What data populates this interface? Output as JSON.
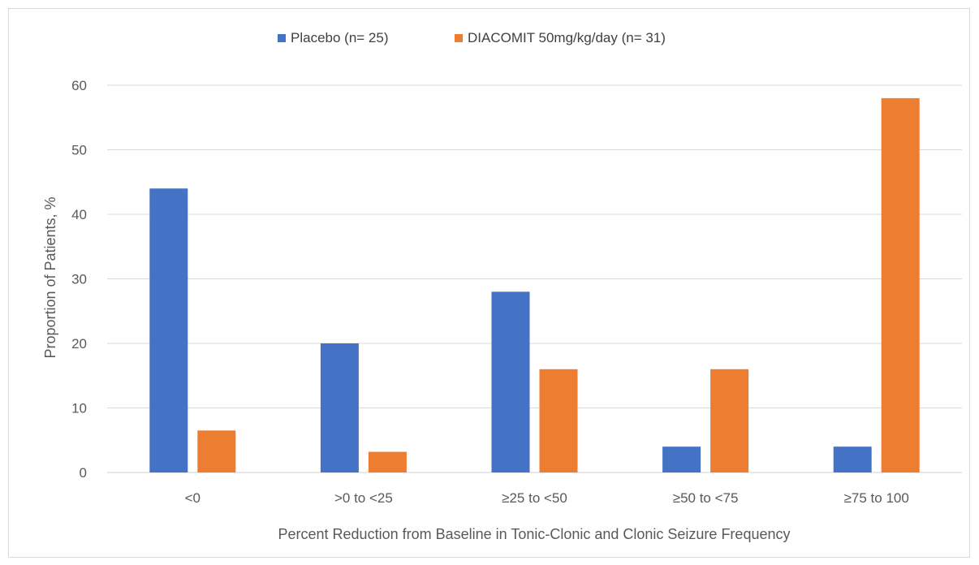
{
  "chart_data": {
    "type": "bar",
    "title": "",
    "xlabel": "Percent Reduction from Baseline in Tonic-Clonic and Clonic Seizure Frequency",
    "ylabel": "Proportion of Patients, %",
    "categories": [
      "<0",
      ">0 to <25",
      "≥25 to <50",
      "≥50 to <75",
      "≥75 to 100"
    ],
    "series": [
      {
        "name": "Placebo (n= 25)",
        "color": "#4472c4",
        "values": [
          44,
          20,
          28,
          4,
          4
        ]
      },
      {
        "name": "DIACOMIT 50mg/kg/day (n= 31)",
        "color": "#ed7d31",
        "values": [
          6.5,
          3.2,
          16,
          16,
          58
        ]
      }
    ],
    "ylim": [
      0,
      60
    ],
    "yticks": [
      0,
      10,
      20,
      30,
      40,
      50,
      60
    ],
    "grid": true,
    "legend_position": "top"
  }
}
